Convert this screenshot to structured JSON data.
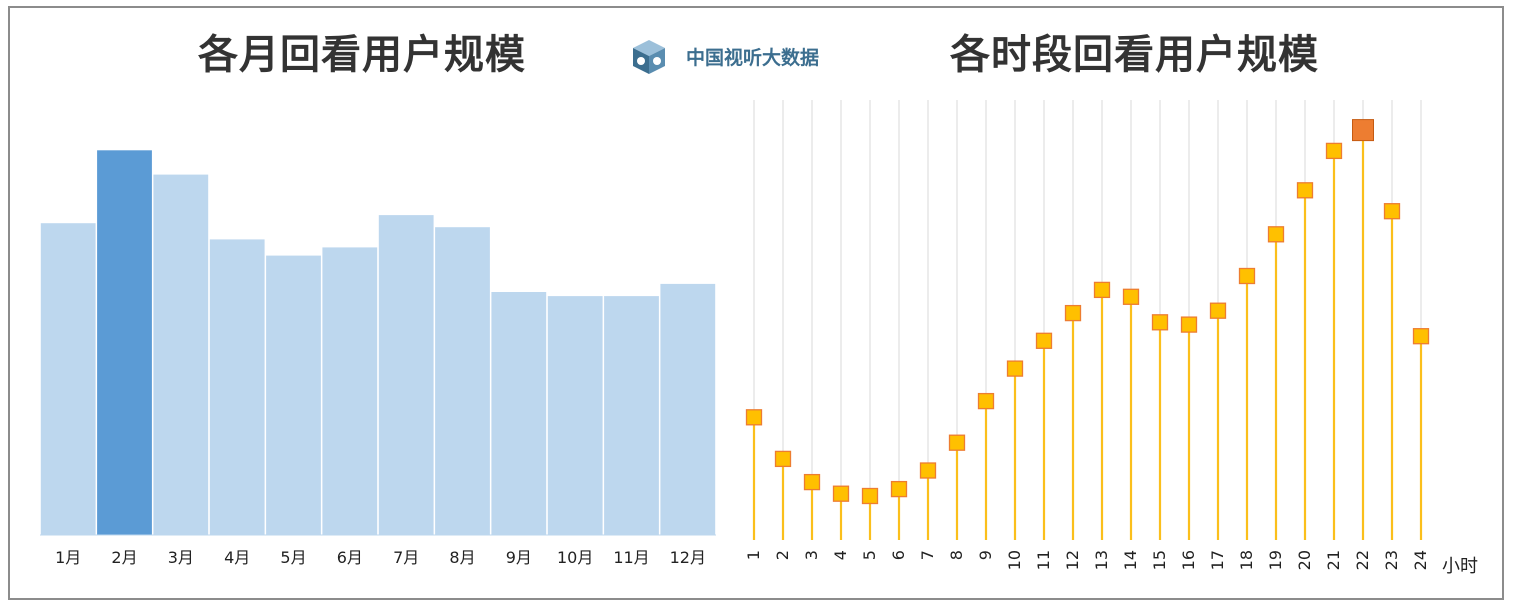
{
  "header": {
    "logo_text": "中国视听大数据",
    "logo_icon": "tv-cube-icon"
  },
  "colors": {
    "bar_default": "#bdd7ee",
    "bar_highlight": "#5b9bd5",
    "stem": "#fbbf1b",
    "marker_fill": "#ffc000",
    "marker_border": "#ed7d31",
    "marker_highlight": "#ed7d31",
    "grid": "#d9d9d9",
    "logo": "#3c6e8f"
  },
  "chart_data": [
    {
      "type": "bar",
      "title": "各月回看用户规模",
      "categories": [
        "1月",
        "2月",
        "3月",
        "4月",
        "5月",
        "6月",
        "7月",
        "8月",
        "9月",
        "10月",
        "11月",
        "12月"
      ],
      "values": [
        77,
        95,
        89,
        73,
        69,
        71,
        79,
        76,
        60,
        59,
        59,
        62
      ],
      "highlight_index": 1,
      "ylim": [
        0,
        100
      ],
      "grid": false,
      "axis_values_shown": false
    },
    {
      "type": "line",
      "style": "stem-with-square-markers",
      "title": "各时段回看用户规模",
      "x": [
        "1",
        "2",
        "3",
        "4",
        "5",
        "6",
        "7",
        "8",
        "9",
        "10",
        "11",
        "12",
        "13",
        "14",
        "15",
        "16",
        "17",
        "18",
        "19",
        "20",
        "21",
        "22",
        "23",
        "24"
      ],
      "values": [
        26.5,
        17.5,
        12.5,
        10,
        9.5,
        11,
        15,
        21,
        30,
        37,
        43,
        49,
        54,
        52.5,
        47,
        46.5,
        49.5,
        57,
        66,
        75.5,
        84,
        88.5,
        71,
        44
      ],
      "highlight_index": 21,
      "xlabel": "小时",
      "ylim": [
        0,
        95
      ],
      "grid": "vertical",
      "axis_values_shown": false
    }
  ]
}
